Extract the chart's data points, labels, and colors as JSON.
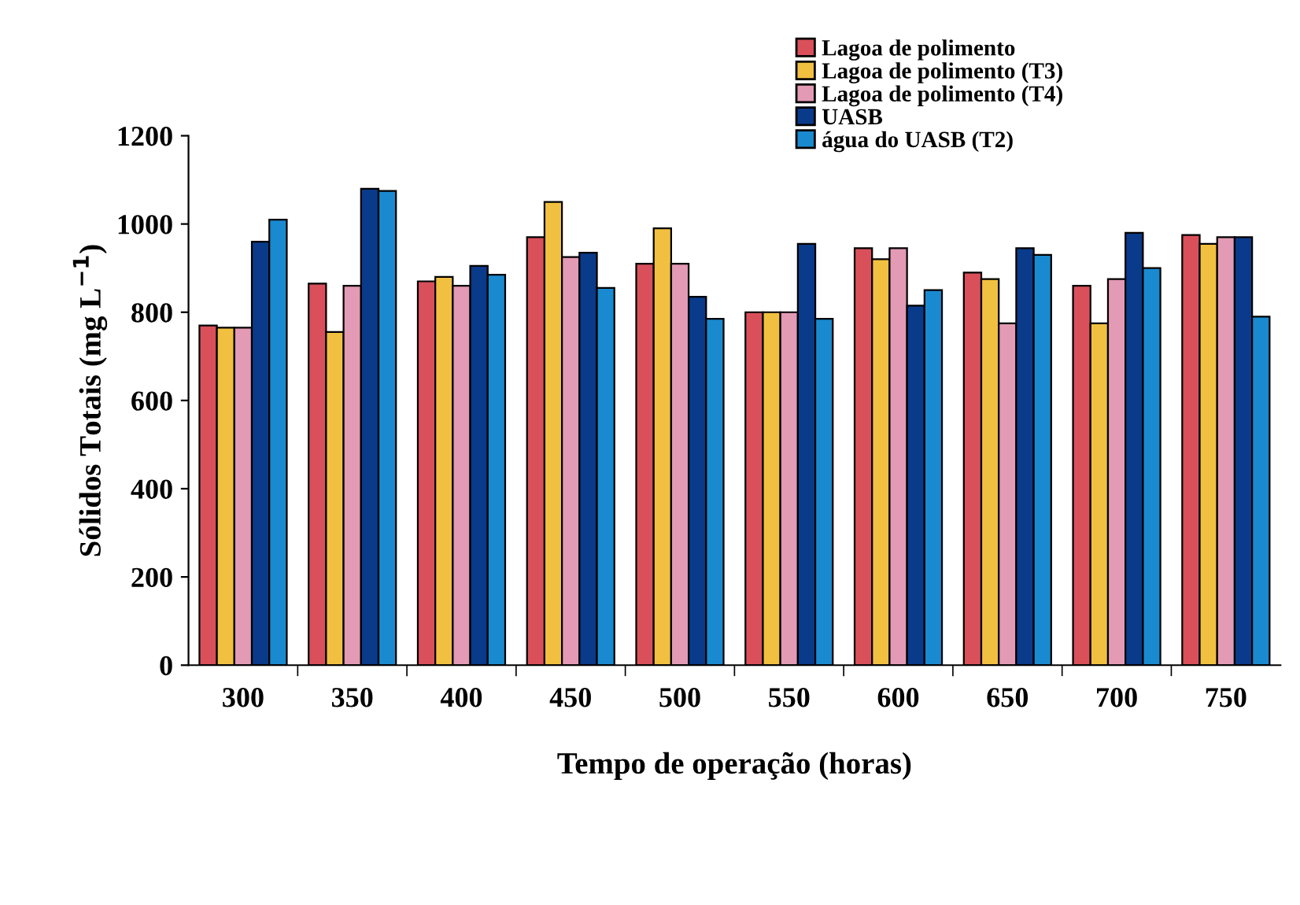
{
  "chart_data": {
    "type": "bar",
    "xlabel": "Tempo de operação (horas)",
    "ylabel": "Sólidos Totais (mg L$^{−1}$)",
    "categories": [
      "300",
      "350",
      "400",
      "450",
      "500",
      "550",
      "600",
      "650",
      "700",
      "750"
    ],
    "ylim": [
      0,
      1200
    ],
    "yticks": [
      0,
      200,
      400,
      600,
      800,
      1000,
      1200
    ],
    "grid": false,
    "legend": "top right",
    "series": [
      {
        "name": "Lagoa de polimento",
        "color": "#d9505a",
        "values": [
          770,
          865,
          870,
          970,
          910,
          800,
          945,
          890,
          860,
          975
        ]
      },
      {
        "name": "Lagoa de polimento (T3)",
        "color": "#f2c040",
        "values": [
          765,
          755,
          880,
          1050,
          990,
          800,
          920,
          875,
          775,
          955
        ]
      },
      {
        "name": "Lagoa de polimento (T4)",
        "color": "#e39ab4",
        "values": [
          765,
          860,
          860,
          925,
          910,
          800,
          945,
          775,
          875,
          970
        ]
      },
      {
        "name": "UASB",
        "color": "#0a3a8a",
        "values": [
          960,
          1080,
          905,
          935,
          835,
          955,
          815,
          945,
          980,
          970
        ]
      },
      {
        "name": "água do UASB (T2)",
        "color": "#1a8ad0",
        "values": [
          1010,
          1075,
          885,
          855,
          785,
          785,
          850,
          930,
          900,
          790
        ]
      }
    ]
  }
}
